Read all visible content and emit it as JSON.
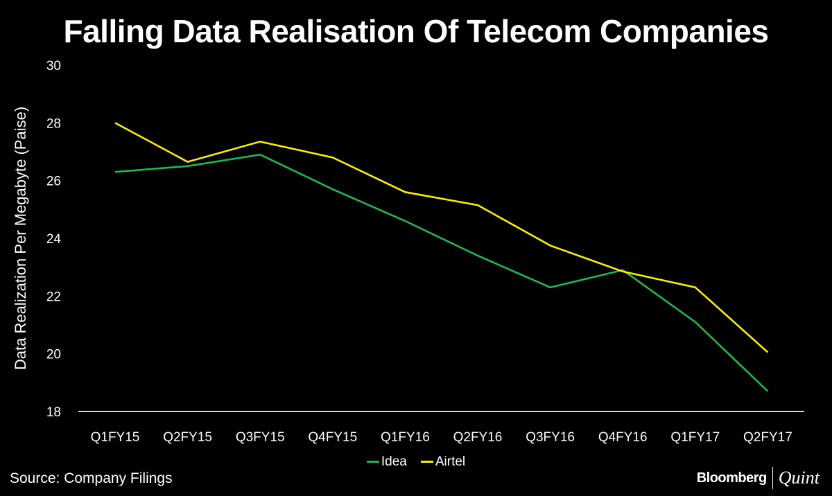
{
  "chart_data": {
    "type": "line",
    "title": "Falling Data Realisation Of Telecom Companies",
    "xlabel": "",
    "ylabel": "Data Realization Per Megabyte (Paise)",
    "ylim": [
      18,
      30
    ],
    "yticks": [
      18,
      20,
      22,
      24,
      26,
      28,
      30
    ],
    "grid": false,
    "legend_placement": "bottom",
    "categories": [
      "Q1FY15",
      "Q2FY15",
      "Q3FY15",
      "Q4FY15",
      "Q1FY16",
      "Q2FY16",
      "Q3FY16",
      "Q4FY16",
      "Q1FY17",
      "Q2FY17"
    ],
    "series": [
      {
        "name": "Idea",
        "color": "#1db954",
        "values": [
          26.3,
          26.5,
          26.9,
          25.7,
          24.6,
          23.4,
          22.3,
          22.9,
          21.1,
          18.7
        ]
      },
      {
        "name": "Airtel",
        "color": "#ffee00",
        "values": [
          28.0,
          26.65,
          27.35,
          26.8,
          25.6,
          25.15,
          23.75,
          22.85,
          22.3,
          20.05
        ]
      }
    ]
  },
  "source": "Source:  Company Filings",
  "brand": {
    "primary": "Bloomberg",
    "secondary": "Quint"
  }
}
